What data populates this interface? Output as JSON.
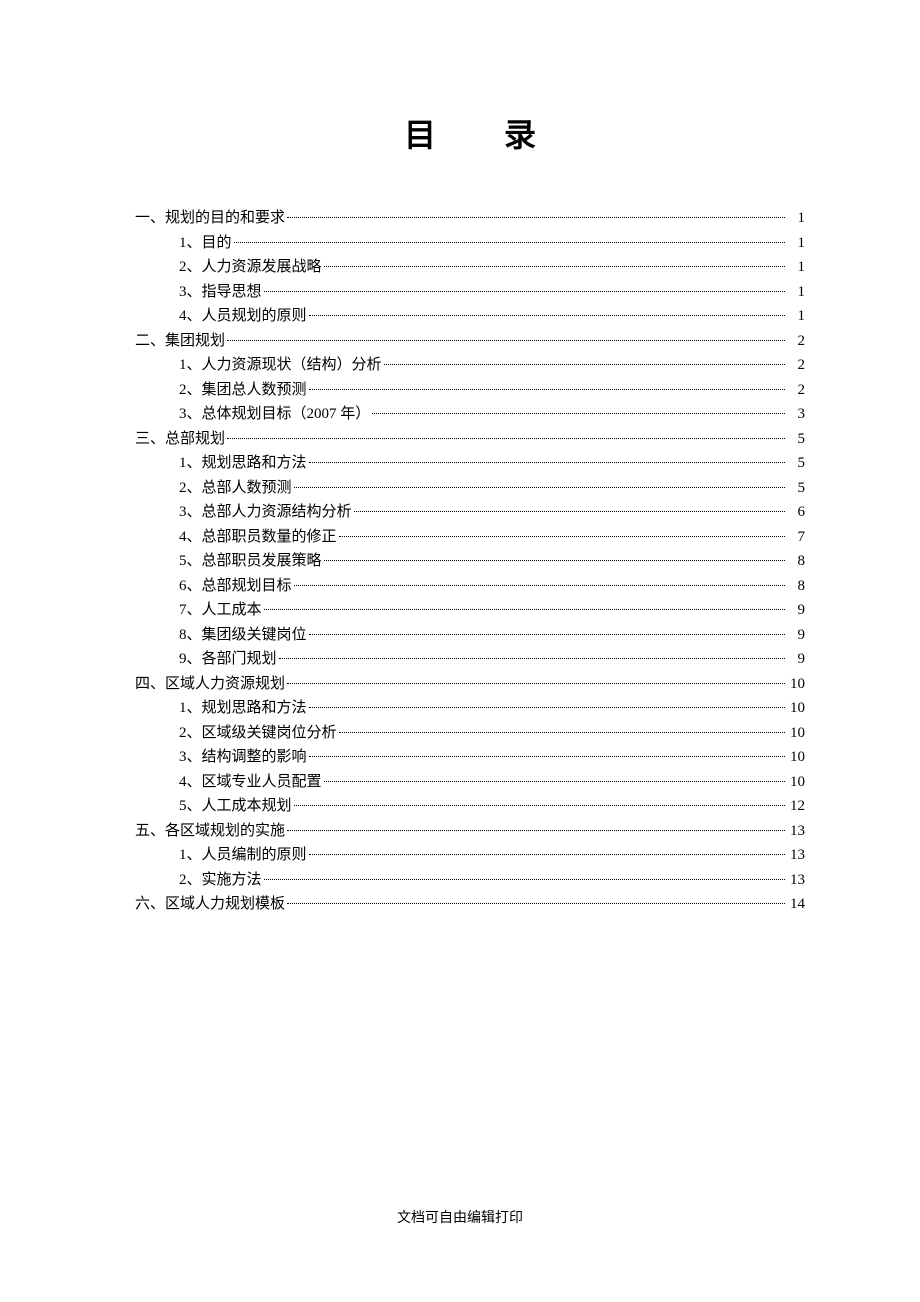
{
  "title": "目 录",
  "footer": "文档可自由编辑打印",
  "toc": [
    {
      "level": 1,
      "label": "一、规划的目的和要求",
      "page": "1"
    },
    {
      "level": 2,
      "label": "1、目的",
      "page": "1"
    },
    {
      "level": 2,
      "label": "2、人力资源发展战略",
      "page": "1"
    },
    {
      "level": 2,
      "label": "3、指导思想",
      "page": "1"
    },
    {
      "level": 2,
      "label": "4、人员规划的原则",
      "page": "1"
    },
    {
      "level": 1,
      "label": "二、集团规划",
      "page": "2"
    },
    {
      "level": 2,
      "label": "1、人力资源现状（结构）分析",
      "page": "2"
    },
    {
      "level": 2,
      "label": "2、集团总人数预测",
      "page": "2"
    },
    {
      "level": 2,
      "label": "3、总体规划目标（2007 年）",
      "page": "3"
    },
    {
      "level": 1,
      "label": "三、总部规划",
      "page": "5"
    },
    {
      "level": 2,
      "label": "1、规划思路和方法",
      "page": "5"
    },
    {
      "level": 2,
      "label": "2、总部人数预测",
      "page": "5"
    },
    {
      "level": 2,
      "label": "3、总部人力资源结构分析",
      "page": "6"
    },
    {
      "level": 2,
      "label": "4、总部职员数量的修正",
      "page": "7"
    },
    {
      "level": 2,
      "label": "5、总部职员发展策略",
      "page": "8"
    },
    {
      "level": 2,
      "label": "6、总部规划目标",
      "page": "8"
    },
    {
      "level": 2,
      "label": "7、人工成本",
      "page": "9"
    },
    {
      "level": 2,
      "label": "8、集团级关键岗位",
      "page": "9"
    },
    {
      "level": 2,
      "label": "9、各部门规划",
      "page": "9"
    },
    {
      "level": 1,
      "label": "四、区域人力资源规划",
      "page": "10"
    },
    {
      "level": 2,
      "label": "1、规划思路和方法",
      "page": "10"
    },
    {
      "level": 2,
      "label": "2、区域级关键岗位分析",
      "page": "10"
    },
    {
      "level": 2,
      "label": "3、结构调整的影响",
      "page": "10"
    },
    {
      "level": 2,
      "label": "4、区域专业人员配置",
      "page": "10"
    },
    {
      "level": 2,
      "label": "5、人工成本规划",
      "page": "12"
    },
    {
      "level": 1,
      "label": "五、各区域规划的实施",
      "page": "13"
    },
    {
      "level": 2,
      "label": "1、人员编制的原则",
      "page": "13"
    },
    {
      "level": 2,
      "label": "2、实施方法",
      "page": "13"
    },
    {
      "level": 1,
      "label": "六、区域人力规划模板",
      "page": "14"
    }
  ]
}
